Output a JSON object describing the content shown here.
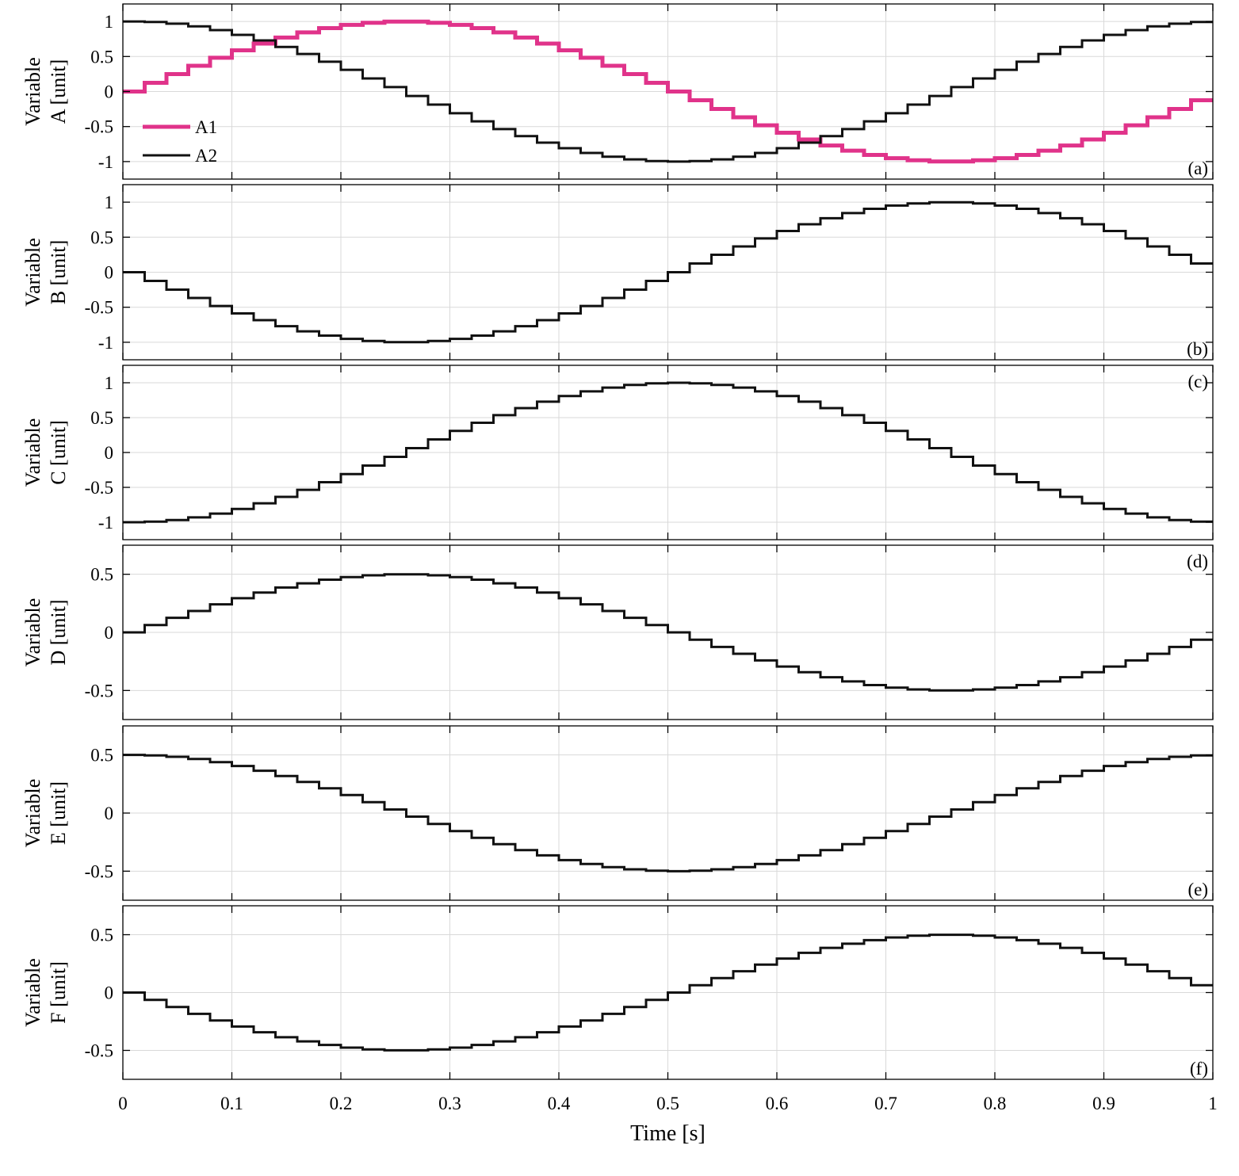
{
  "chart_data": {
    "type": "line",
    "step": true,
    "sample_interval": 0.02,
    "xlabel": "Time [s]",
    "xlim": [
      0,
      1
    ],
    "xticks": [
      0,
      0.1,
      0.2,
      0.3,
      0.4,
      0.5,
      0.6,
      0.7,
      0.8,
      0.9,
      1
    ],
    "xtick_labels": [
      "0",
      "0.1",
      "0.2",
      "0.3",
      "0.4",
      "0.5",
      "0.6",
      "0.7",
      "0.8",
      "0.9",
      "1"
    ],
    "grid": true,
    "panels": [
      {
        "id": "a",
        "panel_label": "(a)",
        "ylabel_line1": "Variable",
        "ylabel_line2": "A [unit]",
        "ylim": [
          -1.25,
          1.25
        ],
        "yticks": [
          -1,
          -0.5,
          0,
          0.5,
          1
        ],
        "ytick_labels": [
          "-1",
          "-0.5",
          "0",
          "0.5",
          "1"
        ],
        "legend": {
          "position": "left-bottom"
        },
        "series": [
          {
            "name": "A1",
            "color": "#e0338a",
            "width": 5,
            "amplitude": 1,
            "phase": "sin",
            "values": [
              0,
              0.125,
              0.249,
              0.368,
              0.482,
              0.588,
              0.685,
              0.771,
              0.844,
              0.905,
              0.951,
              0.982,
              0.998,
              0.998,
              0.982,
              0.951,
              0.905,
              0.844,
              0.771,
              0.685,
              0.588,
              0.482,
              0.368,
              0.249,
              0.125,
              0,
              -0.125,
              -0.249,
              -0.368,
              -0.482,
              -0.588,
              -0.685,
              -0.771,
              -0.844,
              -0.905,
              -0.951,
              -0.982,
              -0.998,
              -0.998,
              -0.982,
              -0.951,
              -0.905,
              -0.844,
              -0.771,
              -0.685,
              -0.588,
              -0.482,
              -0.368,
              -0.249,
              -0.125
            ]
          },
          {
            "name": "A2",
            "color": "#111111",
            "width": 3,
            "amplitude": 1,
            "phase": "cos",
            "values": [
              1,
              0.992,
              0.969,
              0.93,
              0.876,
              0.809,
              0.729,
              0.637,
              0.536,
              0.426,
              0.309,
              0.187,
              0.063,
              -0.063,
              -0.187,
              -0.309,
              -0.426,
              -0.536,
              -0.637,
              -0.729,
              -0.809,
              -0.876,
              -0.93,
              -0.969,
              -0.992,
              -1,
              -0.992,
              -0.969,
              -0.93,
              -0.876,
              -0.809,
              -0.729,
              -0.637,
              -0.536,
              -0.426,
              -0.309,
              -0.187,
              -0.063,
              0.063,
              0.187,
              0.309,
              0.426,
              0.536,
              0.637,
              0.729,
              0.809,
              0.876,
              0.93,
              0.969,
              0.992
            ]
          }
        ]
      },
      {
        "id": "b",
        "panel_label": "(b)",
        "ylabel_line1": "Variable",
        "ylabel_line2": "B [unit]",
        "ylim": [
          -1.25,
          1.25
        ],
        "yticks": [
          -1,
          -0.5,
          0,
          0.5,
          1
        ],
        "ytick_labels": [
          "-1",
          "-0.5",
          "0",
          "0.5",
          "1"
        ],
        "series": [
          {
            "name": "",
            "color": "#111111",
            "width": 3,
            "amplitude": 1,
            "phase": "-sin",
            "values": [
              0,
              -0.125,
              -0.249,
              -0.368,
              -0.482,
              -0.588,
              -0.685,
              -0.771,
              -0.844,
              -0.905,
              -0.951,
              -0.982,
              -0.998,
              -0.998,
              -0.982,
              -0.951,
              -0.905,
              -0.844,
              -0.771,
              -0.685,
              -0.588,
              -0.482,
              -0.368,
              -0.249,
              -0.125,
              0,
              0.125,
              0.249,
              0.368,
              0.482,
              0.588,
              0.685,
              0.771,
              0.844,
              0.905,
              0.951,
              0.982,
              0.998,
              0.998,
              0.982,
              0.951,
              0.905,
              0.844,
              0.771,
              0.685,
              0.588,
              0.482,
              0.368,
              0.249,
              0.125
            ]
          }
        ]
      },
      {
        "id": "c",
        "panel_label": "(c)",
        "ylabel_line1": "Variable",
        "ylabel_line2": "C [unit]",
        "ylim": [
          -1.25,
          1.25
        ],
        "yticks": [
          -1,
          -0.5,
          0,
          0.5,
          1
        ],
        "ytick_labels": [
          "-1",
          "-0.5",
          "0",
          "0.5",
          "1"
        ],
        "series": [
          {
            "name": "",
            "color": "#111111",
            "width": 3,
            "amplitude": 1,
            "phase": "-cos",
            "values": [
              -1,
              -0.992,
              -0.969,
              -0.93,
              -0.876,
              -0.809,
              -0.729,
              -0.637,
              -0.536,
              -0.426,
              -0.309,
              -0.187,
              -0.063,
              0.063,
              0.187,
              0.309,
              0.426,
              0.536,
              0.637,
              0.729,
              0.809,
              0.876,
              0.93,
              0.969,
              0.992,
              1,
              0.992,
              0.969,
              0.93,
              0.876,
              0.809,
              0.729,
              0.637,
              0.536,
              0.426,
              0.309,
              0.187,
              0.063,
              -0.063,
              -0.187,
              -0.309,
              -0.426,
              -0.536,
              -0.637,
              -0.729,
              -0.809,
              -0.876,
              -0.93,
              -0.969,
              -0.992
            ]
          }
        ]
      },
      {
        "id": "d",
        "panel_label": "(d)",
        "ylabel_line1": "Variable",
        "ylabel_line2": "D [unit]",
        "ylim": [
          -0.75,
          0.75
        ],
        "yticks": [
          -0.5,
          0,
          0.5
        ],
        "ytick_labels": [
          "-0.5",
          "0",
          "0.5"
        ],
        "series": [
          {
            "name": "",
            "color": "#111111",
            "width": 3,
            "amplitude": 0.5,
            "phase": "sin",
            "values": [
              0,
              0.063,
              0.125,
              0.184,
              0.241,
              0.294,
              0.343,
              0.386,
              0.422,
              0.453,
              0.476,
              0.491,
              0.499,
              0.499,
              0.491,
              0.476,
              0.453,
              0.422,
              0.386,
              0.343,
              0.294,
              0.241,
              0.184,
              0.125,
              0.063,
              0,
              -0.063,
              -0.125,
              -0.184,
              -0.241,
              -0.294,
              -0.343,
              -0.386,
              -0.422,
              -0.453,
              -0.476,
              -0.491,
              -0.499,
              -0.499,
              -0.491,
              -0.476,
              -0.453,
              -0.422,
              -0.386,
              -0.343,
              -0.294,
              -0.241,
              -0.184,
              -0.125,
              -0.063
            ]
          }
        ]
      },
      {
        "id": "e",
        "panel_label": "(e)",
        "ylabel_line1": "Variable",
        "ylabel_line2": "E [unit]",
        "ylim": [
          -0.75,
          0.75
        ],
        "yticks": [
          -0.5,
          0,
          0.5
        ],
        "ytick_labels": [
          "-0.5",
          "0",
          "0.5"
        ],
        "series": [
          {
            "name": "",
            "color": "#111111",
            "width": 3,
            "amplitude": 0.5,
            "phase": "cos",
            "values": [
              0.5,
              0.496,
              0.484,
              0.465,
              0.438,
              0.405,
              0.364,
              0.319,
              0.268,
              0.213,
              0.155,
              0.094,
              0.031,
              -0.031,
              -0.094,
              -0.155,
              -0.213,
              -0.268,
              -0.319,
              -0.364,
              -0.405,
              -0.438,
              -0.465,
              -0.484,
              -0.496,
              -0.5,
              -0.496,
              -0.484,
              -0.465,
              -0.438,
              -0.405,
              -0.364,
              -0.319,
              -0.268,
              -0.213,
              -0.155,
              -0.094,
              -0.031,
              0.031,
              0.094,
              0.155,
              0.213,
              0.268,
              0.319,
              0.364,
              0.405,
              0.438,
              0.465,
              0.484,
              0.496
            ]
          }
        ]
      },
      {
        "id": "f",
        "panel_label": "(f)",
        "ylabel_line1": "Variable",
        "ylabel_line2": "F [unit]",
        "ylim": [
          -0.75,
          0.75
        ],
        "yticks": [
          -0.5,
          0,
          0.5
        ],
        "ytick_labels": [
          "-0.5",
          "0",
          "0.5"
        ],
        "series": [
          {
            "name": "",
            "color": "#111111",
            "width": 3,
            "amplitude": 0.5,
            "phase": "-sin",
            "values": [
              0,
              -0.063,
              -0.125,
              -0.184,
              -0.241,
              -0.294,
              -0.343,
              -0.386,
              -0.422,
              -0.453,
              -0.476,
              -0.491,
              -0.499,
              -0.499,
              -0.491,
              -0.476,
              -0.453,
              -0.422,
              -0.386,
              -0.343,
              -0.294,
              -0.241,
              -0.184,
              -0.125,
              -0.063,
              0,
              0.063,
              0.125,
              0.184,
              0.241,
              0.294,
              0.343,
              0.386,
              0.422,
              0.453,
              0.476,
              0.491,
              0.499,
              0.499,
              0.491,
              0.476,
              0.453,
              0.422,
              0.386,
              0.343,
              0.294,
              0.241,
              0.184,
              0.125,
              0.063
            ]
          }
        ]
      }
    ]
  }
}
